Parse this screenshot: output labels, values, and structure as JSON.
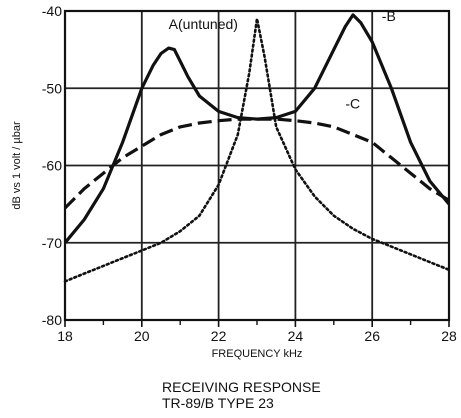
{
  "chart_data": {
    "type": "line",
    "title": "",
    "xlabel": "FREQUENCY  kHz",
    "ylabel": "dB vs 1 volt / µbar",
    "xlim": [
      18,
      28
    ],
    "ylim": [
      -80,
      -40
    ],
    "x_ticks": [
      18,
      20,
      22,
      24,
      26,
      28
    ],
    "y_ticks": [
      -40,
      -50,
      -60,
      -70,
      -80
    ],
    "grid": true,
    "x_minor_ticks": true,
    "series": [
      {
        "name": "B",
        "label_text": "-B",
        "style": "solid",
        "color": "#111111",
        "x": [
          18,
          18.5,
          19,
          19.5,
          20,
          20.3,
          20.5,
          20.7,
          20.85,
          21,
          21.2,
          21.5,
          22,
          22.5,
          23,
          23.5,
          24,
          24.5,
          25,
          25.3,
          25.5,
          25.7,
          26,
          26.5,
          27,
          27.5,
          28
        ],
        "y": [
          -70,
          -67,
          -63,
          -57,
          -50,
          -47,
          -45.5,
          -44.8,
          -45,
          -46.5,
          -48.5,
          -51,
          -53,
          -53.8,
          -54,
          -53.8,
          -53,
          -50,
          -45,
          -42,
          -40.5,
          -41.5,
          -44,
          -50,
          -57,
          -62,
          -65
        ]
      },
      {
        "name": "C",
        "label_text": "-C",
        "style": "dashed",
        "color": "#111111",
        "x": [
          18,
          18.5,
          19,
          19.5,
          20,
          20.5,
          21,
          21.5,
          22,
          22.5,
          23,
          23.5,
          24,
          24.5,
          25,
          25.5,
          26,
          26.5,
          27,
          27.5,
          28
        ],
        "y": [
          -65.5,
          -63,
          -61,
          -59,
          -57.5,
          -56,
          -55,
          -54.5,
          -54.2,
          -54,
          -54,
          -54,
          -54.2,
          -54.5,
          -55,
          -56,
          -57,
          -59,
          -61,
          -63,
          -64.5
        ]
      },
      {
        "name": "A",
        "label_text": "A(untuned)",
        "style": "dotted",
        "color": "#111111",
        "x": [
          18,
          18.5,
          19,
          19.5,
          20,
          20.5,
          21,
          21.5,
          22,
          22.5,
          22.8,
          23,
          23.2,
          23.5,
          24,
          24.5,
          25,
          25.5,
          26,
          26.5,
          27,
          27.5,
          28
        ],
        "y": [
          -75,
          -74,
          -73,
          -72,
          -71,
          -70,
          -68.5,
          -66.5,
          -62.5,
          -56,
          -48,
          -41,
          -46,
          -55,
          -60.5,
          -64,
          -66.5,
          -68.2,
          -69.5,
          -70.5,
          -71.5,
          -72.5,
          -73.5
        ]
      }
    ]
  },
  "captions": {
    "line1": "RECEIVING RESPONSE",
    "line2": "TR-89/B TYPE 23"
  }
}
